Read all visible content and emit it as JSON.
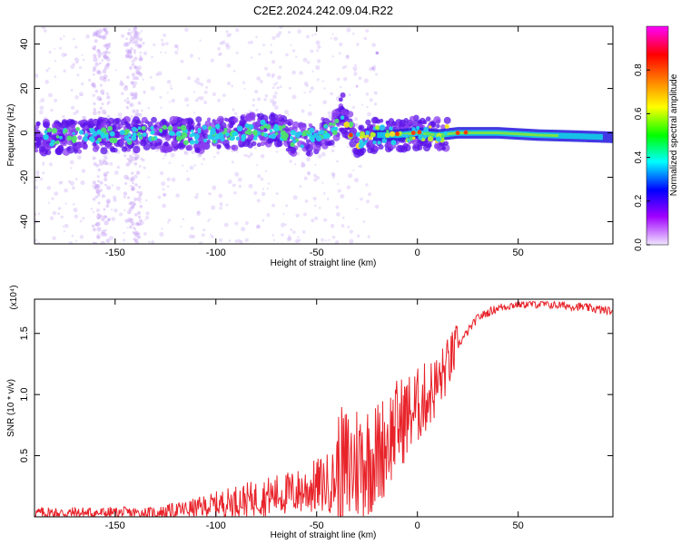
{
  "title": "C2E2.2024.242.09.04.R22",
  "colors": {
    "snr_line": "#e8232a",
    "frame": "#000000",
    "colorbar": [
      "#ff00ff",
      "#ff0000",
      "#ff8000",
      "#ffff00",
      "#00ff00",
      "#00ffff",
      "#0000ff",
      "#a000ff",
      "#e6d4ff"
    ]
  },
  "chart_data": [
    {
      "type": "heatmap",
      "xlabel": "Height of straight line (km)",
      "ylabel": "Frequency (Hz)",
      "xlim": [
        -190,
        97
      ],
      "ylim": [
        -50,
        48
      ],
      "xticks": [
        -150,
        -100,
        -50,
        0,
        50
      ],
      "yticks": [
        40,
        20,
        0,
        -20,
        -40
      ],
      "colorbar": {
        "label": "Normalized spectral amplitude",
        "range": [
          0.0,
          1.0
        ],
        "ticks": [
          0.0,
          0.2,
          0.4,
          0.6,
          0.8
        ]
      },
      "ridge": [
        {
          "x": -190,
          "y": -2
        },
        {
          "x": -150,
          "y": -1
        },
        {
          "x": -110,
          "y": -1
        },
        {
          "x": -90,
          "y": 0
        },
        {
          "x": -70,
          "y": 2
        },
        {
          "x": -60,
          "y": -3
        },
        {
          "x": -50,
          "y": -2
        },
        {
          "x": -40,
          "y": 3
        },
        {
          "x": -37,
          "y": 7
        },
        {
          "x": -30,
          "y": -3
        },
        {
          "x": -20,
          "y": -1
        },
        {
          "x": -10,
          "y": -1
        },
        {
          "x": 0,
          "y": 0
        },
        {
          "x": 10,
          "y": -1
        },
        {
          "x": 20,
          "y": 0
        },
        {
          "x": 40,
          "y": 0
        },
        {
          "x": 60,
          "y": -1
        },
        {
          "x": 80,
          "y": -1.5
        },
        {
          "x": 97,
          "y": -2
        }
      ]
    },
    {
      "type": "line",
      "xlabel": "Height of straight line (km)",
      "ylabel": "SNR (10 * v/v)",
      "y_multiplier": "(x10⁴)",
      "xlim": [
        -190,
        97
      ],
      "ylim": [
        0,
        1.78
      ],
      "xticks": [
        -150,
        -100,
        -50,
        0,
        50
      ],
      "yticks": [
        0.5,
        1.0,
        1.5
      ],
      "ytick_labels": [
        "0.5",
        "1.0",
        "1.5"
      ],
      "series": [
        {
          "name": "",
          "x": [
            -190,
            -130,
            -120,
            -110,
            -100,
            -90,
            -80,
            -70,
            -60,
            -50,
            -40,
            -30,
            -20,
            -10,
            0,
            10,
            20,
            30,
            40,
            50,
            60,
            70,
            80,
            97
          ],
          "y": [
            0.03,
            0.03,
            0.05,
            0.07,
            0.1,
            0.13,
            0.15,
            0.18,
            0.2,
            0.25,
            0.3,
            0.45,
            0.5,
            0.75,
            0.9,
            1.08,
            1.4,
            1.63,
            1.71,
            1.74,
            1.74,
            1.73,
            1.72,
            1.68
          ]
        }
      ]
    }
  ]
}
